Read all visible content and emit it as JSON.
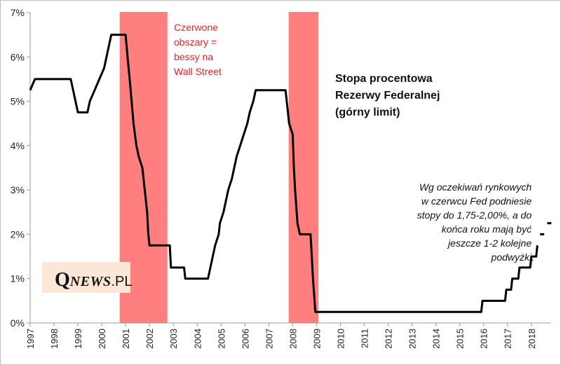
{
  "chart_data": {
    "type": "line",
    "title_lines": [
      "Stopa procentowa",
      "Rezerwy Federalnej",
      "(górny limit)"
    ],
    "recession_note_lines": [
      "Czerwone",
      "obszary =",
      "bessy na",
      "Wall Street"
    ],
    "expectation_note_lines": [
      "Wg oczekiwań rynkowych",
      "w czerwcu Fed podniesie",
      "stopy do 1,75-2,00%, a do",
      "końca roku mają być",
      "jeszcze 1-2 kolejne",
      "podwyżki."
    ],
    "y_ticks": [
      "0%",
      "1%",
      "2%",
      "3%",
      "4%",
      "5%",
      "6%",
      "7%"
    ],
    "x_ticks": [
      "1997",
      "1998",
      "1999",
      "2000",
      "2001",
      "2002",
      "2003",
      "2004",
      "2005",
      "2006",
      "2007",
      "2008",
      "2009",
      "2010",
      "2011",
      "2012",
      "2013",
      "2014",
      "2015",
      "2016",
      "2017",
      "2018"
    ],
    "xlim": [
      1997,
      2018.8
    ],
    "ylim": [
      0,
      7
    ],
    "recession_bands": [
      [
        2000.75,
        2002.75
      ],
      [
        2007.83,
        2009.08
      ]
    ],
    "series": [
      {
        "points": [
          [
            1997.0,
            5.25
          ],
          [
            1997.2,
            5.5
          ],
          [
            1998.7,
            5.5
          ],
          [
            1998.8,
            5.25
          ],
          [
            1998.9,
            5.0
          ],
          [
            1999.0,
            4.75
          ],
          [
            1999.4,
            4.75
          ],
          [
            1999.5,
            5.0
          ],
          [
            1999.7,
            5.25
          ],
          [
            1999.9,
            5.5
          ],
          [
            2000.1,
            5.75
          ],
          [
            2000.2,
            6.0
          ],
          [
            2000.4,
            6.5
          ],
          [
            2001.0,
            6.5
          ],
          [
            2001.08,
            6.0
          ],
          [
            2001.17,
            5.5
          ],
          [
            2001.25,
            5.0
          ],
          [
            2001.33,
            4.5
          ],
          [
            2001.45,
            4.0
          ],
          [
            2001.55,
            3.75
          ],
          [
            2001.7,
            3.5
          ],
          [
            2001.8,
            3.0
          ],
          [
            2001.9,
            2.5
          ],
          [
            2001.95,
            2.0
          ],
          [
            2002.0,
            1.75
          ],
          [
            2002.85,
            1.75
          ],
          [
            2002.9,
            1.25
          ],
          [
            2003.45,
            1.25
          ],
          [
            2003.5,
            1.0
          ],
          [
            2004.45,
            1.0
          ],
          [
            2004.55,
            1.25
          ],
          [
            2004.65,
            1.5
          ],
          [
            2004.75,
            1.75
          ],
          [
            2004.9,
            2.0
          ],
          [
            2004.95,
            2.25
          ],
          [
            2005.1,
            2.5
          ],
          [
            2005.2,
            2.75
          ],
          [
            2005.3,
            3.0
          ],
          [
            2005.45,
            3.25
          ],
          [
            2005.55,
            3.5
          ],
          [
            2005.65,
            3.75
          ],
          [
            2005.8,
            4.0
          ],
          [
            2005.95,
            4.25
          ],
          [
            2006.1,
            4.5
          ],
          [
            2006.2,
            4.75
          ],
          [
            2006.35,
            5.0
          ],
          [
            2006.45,
            5.25
          ],
          [
            2007.7,
            5.25
          ],
          [
            2007.75,
            5.0
          ],
          [
            2007.8,
            4.75
          ],
          [
            2007.85,
            4.5
          ],
          [
            2008.0,
            4.25
          ],
          [
            2008.05,
            3.5
          ],
          [
            2008.1,
            3.0
          ],
          [
            2008.2,
            2.25
          ],
          [
            2008.3,
            2.0
          ],
          [
            2008.75,
            2.0
          ],
          [
            2008.8,
            1.5
          ],
          [
            2008.85,
            1.0
          ],
          [
            2008.95,
            0.25
          ],
          [
            2015.9,
            0.25
          ],
          [
            2015.95,
            0.5
          ],
          [
            2016.9,
            0.5
          ],
          [
            2016.95,
            0.75
          ],
          [
            2017.15,
            0.75
          ],
          [
            2017.2,
            1.0
          ],
          [
            2017.45,
            1.0
          ],
          [
            2017.5,
            1.25
          ],
          [
            2017.95,
            1.25
          ],
          [
            2018.0,
            1.5
          ],
          [
            2018.2,
            1.5
          ],
          [
            2018.25,
            1.75
          ]
        ]
      }
    ],
    "expected_points": [
      [
        2018.45,
        2.0
      ],
      [
        2018.75,
        2.25
      ]
    ],
    "colors": {
      "line": "#000000",
      "recession": "#ff7f7f",
      "recession_text": "#e8202a"
    }
  },
  "branding": {
    "logo_q": "Q",
    "logo_news": "NEWS",
    "logo_pl": ".PL"
  }
}
